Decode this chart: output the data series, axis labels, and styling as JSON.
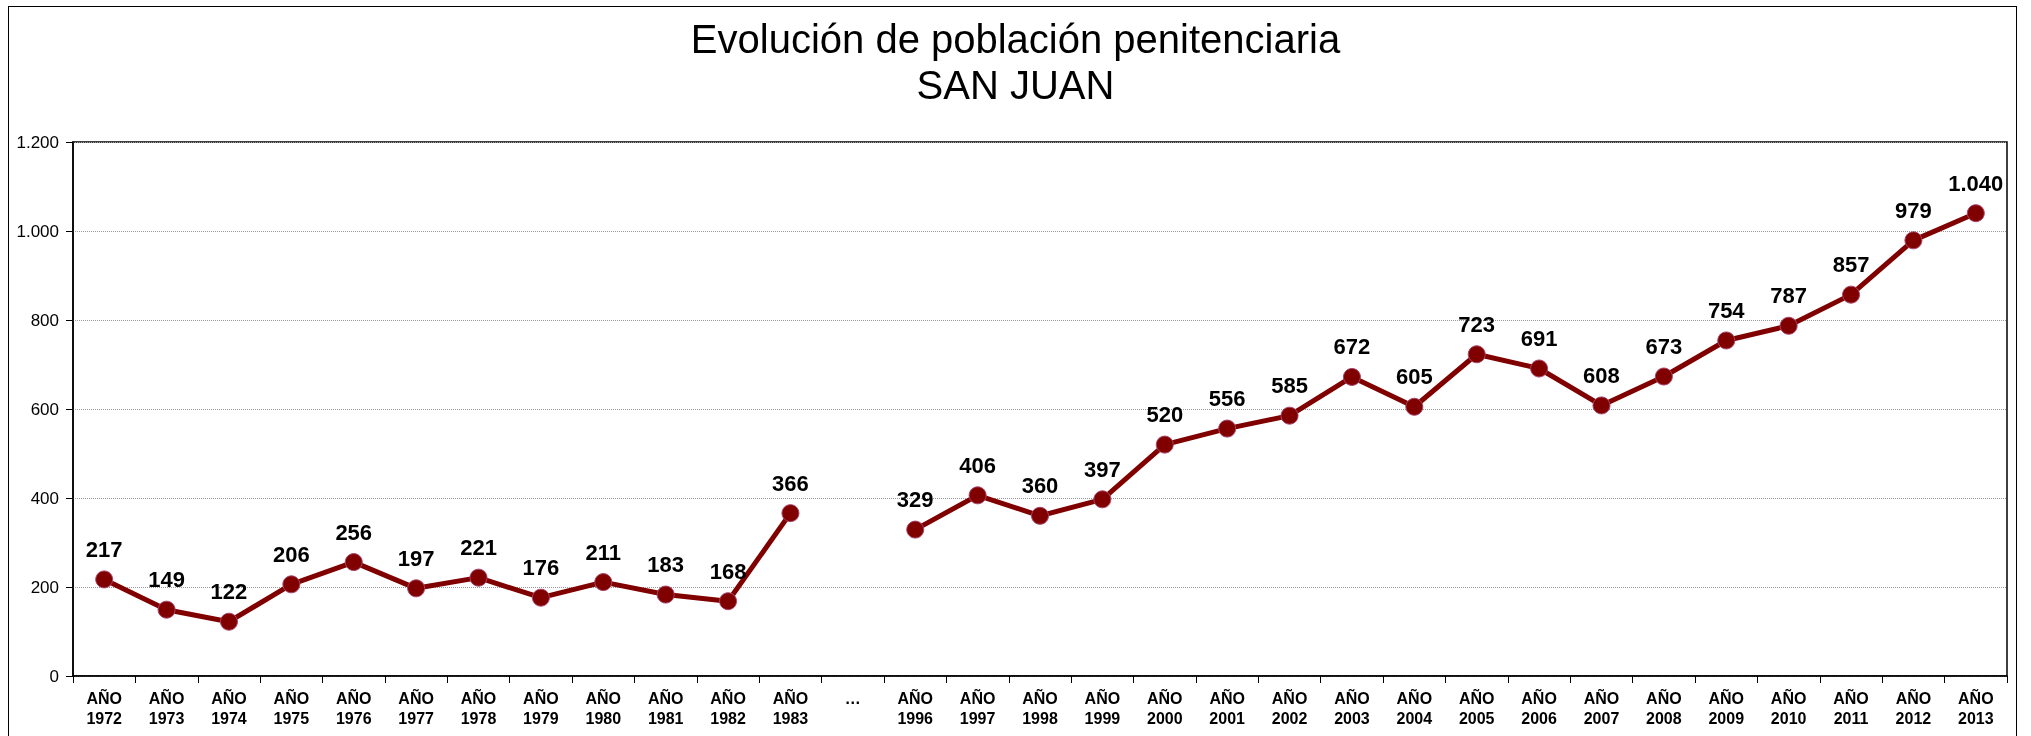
{
  "chart_data": {
    "type": "line",
    "title": "Evolución de población penitenciaria",
    "subtitle": "SAN JUAN",
    "categories": [
      "AÑO\n1972",
      "AÑO\n1973",
      "AÑO\n1974",
      "AÑO\n1975",
      "AÑO\n1976",
      "AÑO\n1977",
      "AÑO\n1978",
      "AÑO\n1979",
      "AÑO\n1980",
      "AÑO\n1981",
      "AÑO\n1982",
      "AÑO\n1983",
      "…",
      "AÑO\n1996",
      "AÑO\n1997",
      "AÑO\n1998",
      "AÑO\n1999",
      "AÑO\n2000",
      "AÑO\n2001",
      "AÑO\n2002",
      "AÑO\n2003",
      "AÑO\n2004",
      "AÑO\n2005",
      "AÑO\n2006",
      "AÑO\n2007",
      "AÑO\n2008",
      "AÑO\n2009",
      "AÑO\n2010",
      "AÑO\n2011",
      "AÑO\n2012",
      "AÑO\n2013"
    ],
    "series": [
      {
        "color": "#800000",
        "values": [
          217,
          149,
          122,
          206,
          256,
          197,
          221,
          176,
          211,
          183,
          168,
          366,
          null,
          329,
          406,
          360,
          397,
          520,
          556,
          585,
          672,
          605,
          723,
          691,
          608,
          673,
          754,
          787,
          857,
          979,
          1040
        ],
        "value_labels": [
          "217",
          "149",
          "122",
          "206",
          "256",
          "197",
          "221",
          "176",
          "211",
          "183",
          "168",
          "366",
          null,
          "329",
          "406",
          "360",
          "397",
          "520",
          "556",
          "585",
          "672",
          "605",
          "723",
          "691",
          "608",
          "673",
          "754",
          "787",
          "857",
          "979",
          "1.040"
        ]
      }
    ],
    "ylim": [
      0,
      1200
    ],
    "yticks": [
      0,
      200,
      400,
      600,
      800,
      {
        "value": 1000,
        "label": "1.000"
      },
      {
        "value": 1200,
        "label": "1.200"
      }
    ],
    "grid": "y",
    "marker": "circle",
    "line_style": "solid"
  }
}
